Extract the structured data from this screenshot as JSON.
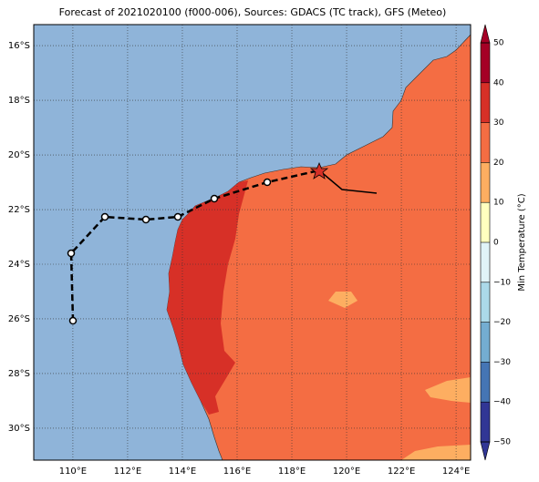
{
  "title": "Forecast of 2021020100 (f000-006), Sources: GDACS (TC track), GFS (Meteo)",
  "map": {
    "xlim": [
      108.57,
      124.53
    ],
    "ylim": [
      -31.17,
      -15.23
    ],
    "xticks": [
      {
        "value": 110,
        "label": "110°E"
      },
      {
        "value": 112,
        "label": "112°E"
      },
      {
        "value": 114,
        "label": "114°E"
      },
      {
        "value": 116,
        "label": "116°E"
      },
      {
        "value": 118,
        "label": "118°E"
      },
      {
        "value": 120,
        "label": "120°E"
      },
      {
        "value": 122,
        "label": "122°E"
      },
      {
        "value": 124,
        "label": "124°E"
      }
    ],
    "yticks": [
      {
        "value": -16,
        "label": "16°S"
      },
      {
        "value": -18,
        "label": "18°S"
      },
      {
        "value": -20,
        "label": "20°S"
      },
      {
        "value": -22,
        "label": "22°S"
      },
      {
        "value": -24,
        "label": "24°S"
      },
      {
        "value": -26,
        "label": "26°S"
      },
      {
        "value": -28,
        "label": "28°S"
      },
      {
        "value": -30,
        "label": "30°S"
      }
    ]
  },
  "colorbar": {
    "label": "Min Temperature (°C)",
    "lim": [
      -50,
      50
    ],
    "colors": [
      "#313695",
      "#4575b4",
      "#74add1",
      "#abd9e9",
      "#e0f3f8",
      "#ffffbf",
      "#fdae61",
      "#f46d43",
      "#d73027",
      "#a50026"
    ],
    "ticks": [
      {
        "value": 50,
        "label": "50"
      },
      {
        "value": 40,
        "label": "40"
      },
      {
        "value": 30,
        "label": "30"
      },
      {
        "value": 20,
        "label": "20"
      },
      {
        "value": 10,
        "label": "10"
      },
      {
        "value": 0,
        "label": "0"
      },
      {
        "value": -10,
        "label": "−10"
      },
      {
        "value": -20,
        "label": "−20"
      },
      {
        "value": -30,
        "label": "−30"
      },
      {
        "value": -40,
        "label": "−40"
      },
      {
        "value": -50,
        "label": "−50"
      }
    ]
  }
}
